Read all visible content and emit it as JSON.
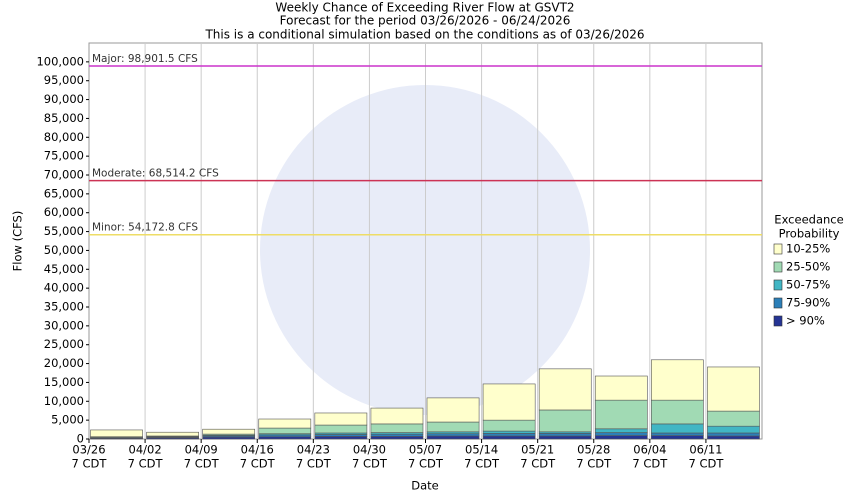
{
  "chart_data": {
    "type": "stacked_bar",
    "title": [
      "Weekly Chance of Exceeding River Flow at GSVT2",
      "Forecast for the period 03/26/2026 - 06/24/2026",
      "This is a conditional simulation based on the conditions as of 03/26/2026"
    ],
    "x_label": "Date",
    "y_label": "Flow (CFS)",
    "categories": [
      "03/26",
      "04/02",
      "04/09",
      "04/16",
      "04/23",
      "04/30",
      "05/07",
      "05/14",
      "05/21",
      "05/28",
      "06/04",
      "06/11"
    ],
    "category_sublabel": "7 CDT",
    "series": [
      {
        "name": "10-25%",
        "color": "#ffffcc",
        "values": [
          1800,
          1000,
          1300,
          2400,
          3200,
          4200,
          6400,
          9600,
          10900,
          6400,
          10700,
          11700
        ]
      },
      {
        "name": "25-50%",
        "color": "#a1dab4",
        "values": [
          200,
          200,
          300,
          1500,
          2100,
          2300,
          2600,
          2900,
          5800,
          7600,
          6300,
          4000
        ]
      },
      {
        "name": "50-75%",
        "color": "#41b6c4",
        "values": [
          100,
          100,
          200,
          300,
          400,
          400,
          500,
          600,
          400,
          1000,
          2400,
          1800
        ]
      },
      {
        "name": "75-90%",
        "color": "#2c7fb8",
        "values": [
          100,
          200,
          300,
          500,
          500,
          600,
          600,
          700,
          700,
          800,
          700,
          800
        ]
      },
      {
        "name": "> 90%",
        "color": "#253494",
        "values": [
          200,
          300,
          500,
          600,
          700,
          700,
          800,
          800,
          800,
          900,
          900,
          800
        ]
      }
    ],
    "legend_title": [
      "Exceedance",
      "Probability"
    ],
    "ylim": [
      0,
      105000
    ],
    "yticks": [
      0,
      {
        "value": 5000,
        "label": "5,000"
      },
      {
        "value": 10000,
        "label": "10,000"
      },
      {
        "value": 15000,
        "label": "15,000"
      },
      {
        "value": 20000,
        "label": "20,000"
      },
      {
        "value": 25000,
        "label": "25,000"
      },
      {
        "value": 30000,
        "label": "30,000"
      },
      {
        "value": 35000,
        "label": "35,000"
      },
      {
        "value": 40000,
        "label": "40,000"
      },
      {
        "value": 45000,
        "label": "45,000"
      },
      {
        "value": 50000,
        "label": "50,000"
      },
      {
        "value": 55000,
        "label": "55,000"
      },
      {
        "value": 60000,
        "label": "60,000"
      },
      {
        "value": 65000,
        "label": "65,000"
      },
      {
        "value": 70000,
        "label": "70,000"
      },
      {
        "value": 75000,
        "label": "75,000"
      },
      {
        "value": 80000,
        "label": "80,000"
      },
      {
        "value": 85000,
        "label": "85,000"
      },
      {
        "value": 90000,
        "label": "90,000"
      },
      {
        "value": 95000,
        "label": "95,000"
      },
      {
        "value": 100000,
        "label": "100,000"
      }
    ],
    "thresholds": [
      {
        "value": 98901.5,
        "label": "Major: 98,901.5 CFS",
        "color": "#cc33cc"
      },
      {
        "value": 68514.2,
        "label": "Moderate: 68,514.2 CFS",
        "color": "#cc3355"
      },
      {
        "value": 54172.8,
        "label": "Minor: 54,172.8 CFS",
        "color": "#eedd66"
      }
    ]
  }
}
